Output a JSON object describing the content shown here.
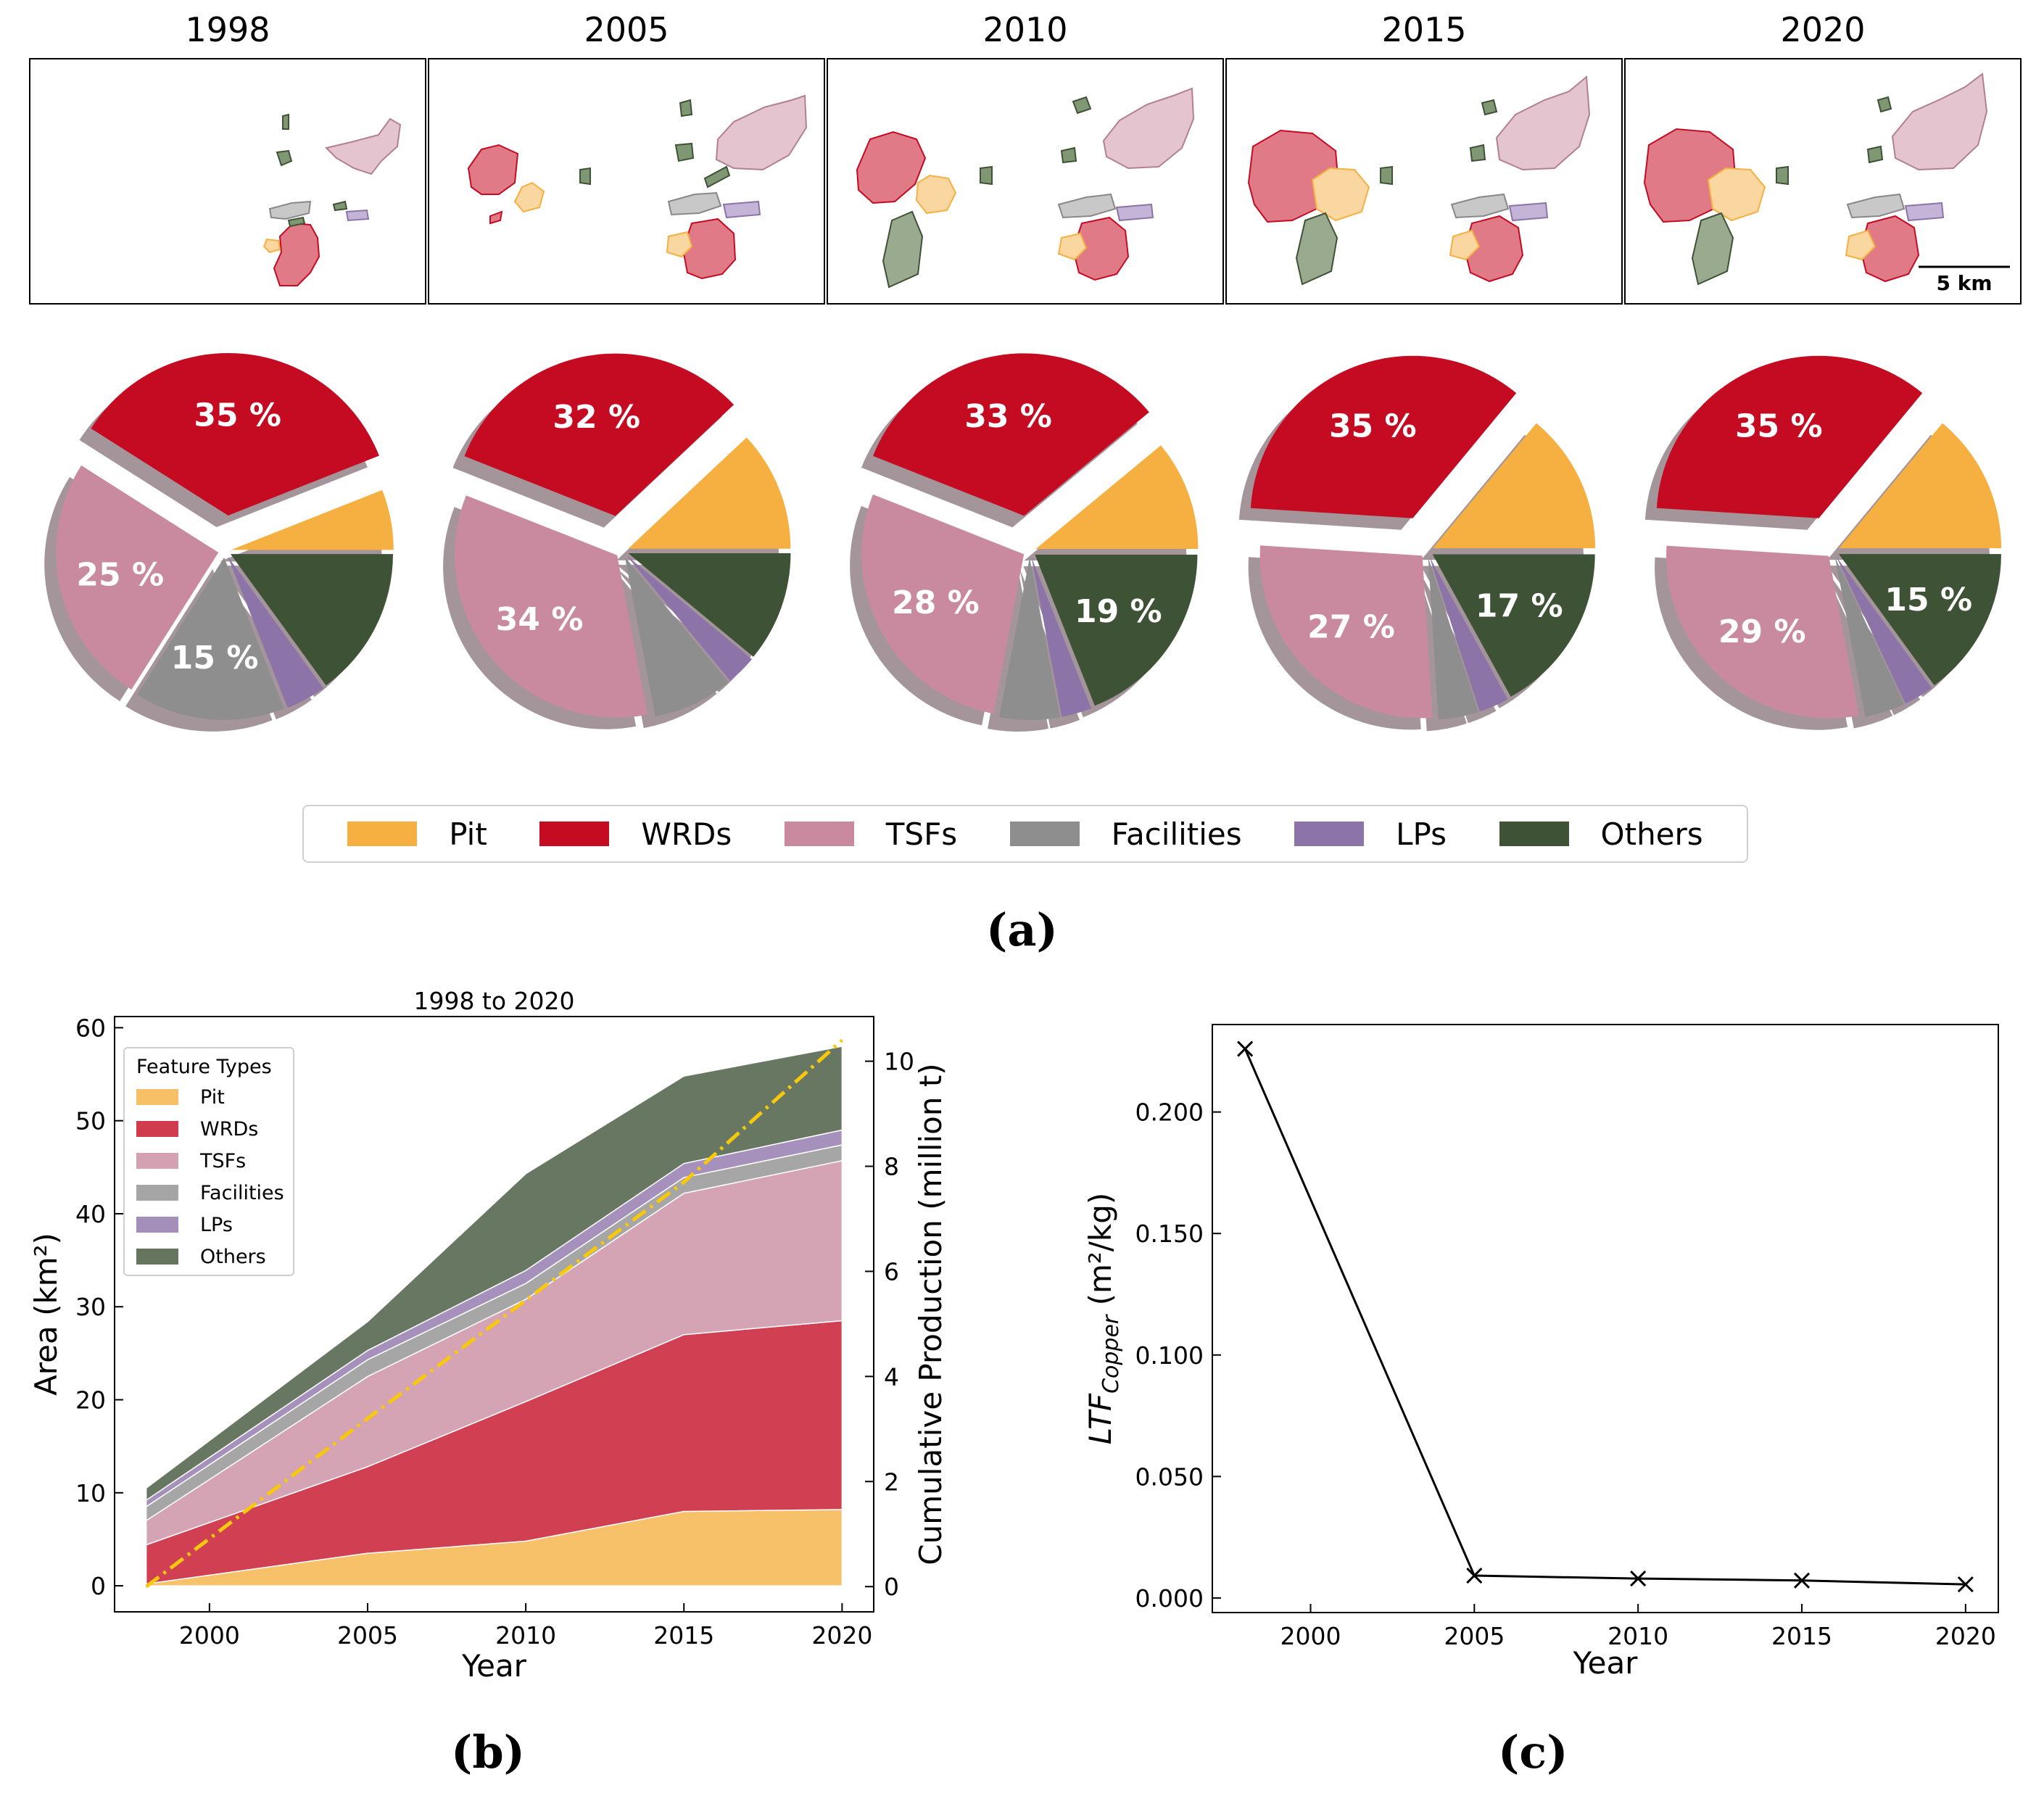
{
  "colors": {
    "pit": "#f5b041",
    "wrds": "#c40b22",
    "tsfs": "#c98aa0",
    "facilities": "#8e8e8e",
    "lps": "#8c73a8",
    "others": "#3e5236",
    "shadow": "#9a8a90",
    "line": "#f7c80b"
  },
  "panel_a": {
    "years": [
      "1998",
      "2005",
      "2010",
      "2015",
      "2020"
    ],
    "scale_bar_label": "5 km",
    "legend": [
      "Pit",
      "WRDs",
      "TSFs",
      "Facilities",
      "LPs",
      "Others"
    ],
    "label": "(a)"
  },
  "panel_b": {
    "label": "(b)"
  },
  "panel_c": {
    "label": "(c)"
  },
  "chart_data": [
    {
      "type": "pie",
      "title": "1998",
      "categories": [
        "Pit",
        "WRDs",
        "TSFs",
        "Facilities",
        "LPs",
        "Others"
      ],
      "values": [
        6,
        35,
        25,
        15,
        4,
        15
      ],
      "labels": [
        "",
        "35 %",
        "25 %",
        "15 %",
        "",
        ""
      ]
    },
    {
      "type": "pie",
      "title": "2005",
      "categories": [
        "Pit",
        "WRDs",
        "TSFs",
        "Facilities",
        "LPs",
        "Others"
      ],
      "values": [
        12,
        32,
        34,
        8,
        3,
        11
      ],
      "labels": [
        "",
        "32 %",
        "34 %",
        "",
        "",
        ""
      ]
    },
    {
      "type": "pie",
      "title": "2010",
      "categories": [
        "Pit",
        "WRDs",
        "TSFs",
        "Facilities",
        "LPs",
        "Others"
      ],
      "values": [
        11,
        33,
        28,
        6,
        3,
        19
      ],
      "labels": [
        "",
        "33 %",
        "28 %",
        "",
        "",
        "19 %"
      ]
    },
    {
      "type": "pie",
      "title": "2015",
      "categories": [
        "Pit",
        "WRDs",
        "TSFs",
        "Facilities",
        "LPs",
        "Others"
      ],
      "values": [
        14,
        35,
        27,
        4,
        3,
        17
      ],
      "labels": [
        "",
        "35 %",
        "27 %",
        "",
        "",
        "17 %"
      ]
    },
    {
      "type": "pie",
      "title": "2020",
      "categories": [
        "Pit",
        "WRDs",
        "TSFs",
        "Facilities",
        "LPs",
        "Others"
      ],
      "values": [
        14,
        35,
        29,
        4,
        3,
        15
      ],
      "labels": [
        "",
        "35 %",
        "29 %",
        "",
        "",
        "15 %"
      ]
    },
    {
      "type": "area",
      "title": "1998 to 2020",
      "x": [
        1998,
        2005,
        2010,
        2015,
        2020
      ],
      "xticks": [
        "2000",
        "2005",
        "2010",
        "2015",
        "2020"
      ],
      "xlabel": "Year",
      "ylabel": "Area (km²)",
      "ylim": [
        0,
        60
      ],
      "yticks": [
        "0",
        "10",
        "20",
        "30",
        "40",
        "50",
        "60"
      ],
      "y2label": "Cumulative Production (million t)",
      "y2lim": [
        0,
        10.75
      ],
      "y2ticks": [
        "0",
        "2",
        "4",
        "6",
        "8",
        "10"
      ],
      "legend_title": "Feature Types",
      "series": [
        {
          "name": "Pit",
          "values": [
            0.2,
            3.5,
            4.8,
            8.0,
            8.2
          ]
        },
        {
          "name": "WRDs",
          "values": [
            4.2,
            9.3,
            15.0,
            19.0,
            20.3
          ]
        },
        {
          "name": "TSFs",
          "values": [
            2.6,
            9.7,
            11.0,
            15.2,
            17.2
          ]
        },
        {
          "name": "Facilities",
          "values": [
            1.5,
            1.8,
            1.7,
            1.7,
            1.7
          ]
        },
        {
          "name": "LPs",
          "values": [
            0.7,
            1.0,
            1.4,
            1.5,
            1.6
          ]
        },
        {
          "name": "Others",
          "values": [
            1.3,
            3.1,
            10.4,
            9.4,
            9.0
          ]
        }
      ],
      "secondary_series": {
        "name": "Cumulative Production",
        "x": [
          1998,
          2005,
          2011,
          2015,
          2020
        ],
        "values": [
          0,
          3.2,
          5.9,
          7.7,
          10.4
        ]
      }
    },
    {
      "type": "line",
      "title": "",
      "x": [
        1998,
        2005,
        2010,
        2015,
        2020
      ],
      "values": [
        0.226,
        0.0092,
        0.008,
        0.0072,
        0.0056
      ],
      "xticks": [
        "2000",
        "2005",
        "2010",
        "2015",
        "2020"
      ],
      "xlabel": "Year",
      "ylabel_main": "LTF",
      "ylabel_sub": "Copper",
      "ylabel_unit": "(m²/kg)",
      "ylim": [
        -0.006,
        0.236
      ],
      "yticks": [
        "0.000",
        "0.050",
        "0.100",
        "0.150",
        "0.200"
      ]
    }
  ]
}
